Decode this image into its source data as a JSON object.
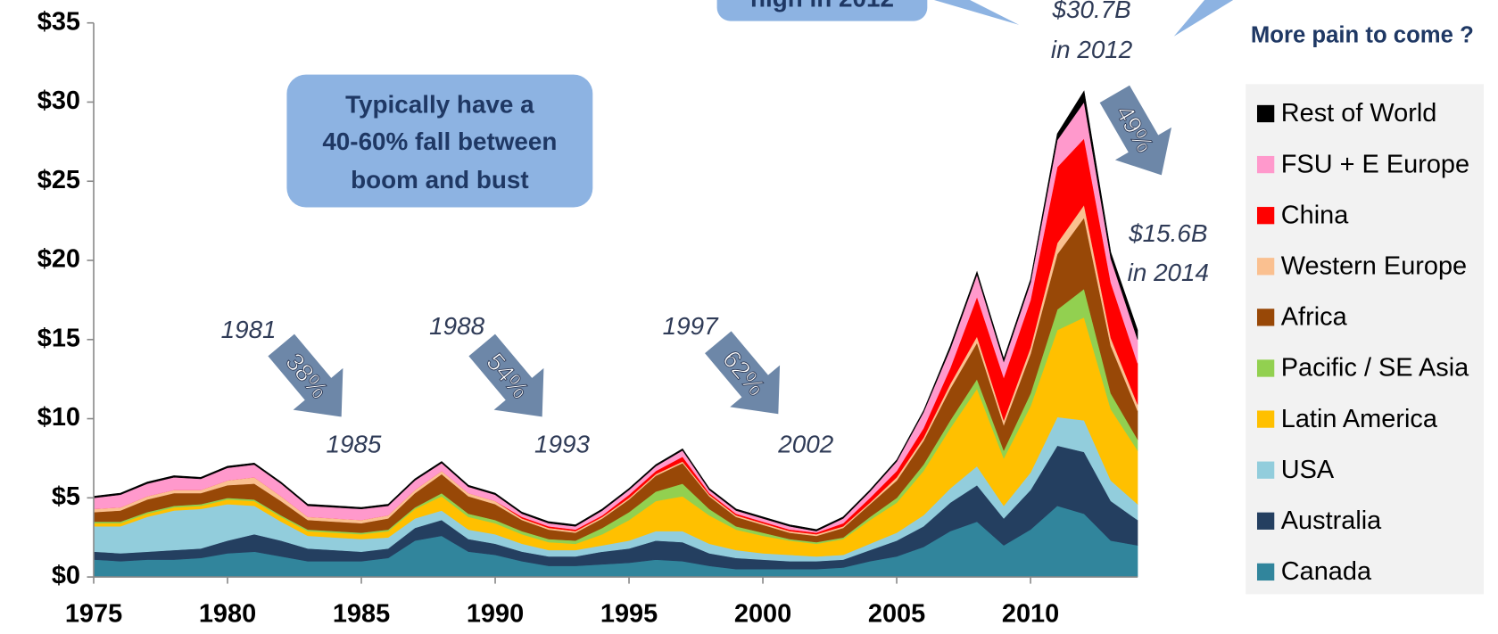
{
  "chart_data": {
    "type": "stacked_area",
    "x": [
      1975,
      1976,
      1977,
      1978,
      1979,
      1980,
      1981,
      1982,
      1983,
      1984,
      1985,
      1986,
      1987,
      1988,
      1989,
      1990,
      1991,
      1992,
      1993,
      1994,
      1995,
      1996,
      1997,
      1998,
      1999,
      2000,
      2001,
      2002,
      2003,
      2004,
      2005,
      2006,
      2007,
      2008,
      2009,
      2010,
      2011,
      2012,
      2013,
      2014
    ],
    "xlim": [
      1975,
      2014
    ],
    "xticks": [
      1975,
      1980,
      1985,
      1990,
      1995,
      2000,
      2005,
      2010
    ],
    "ylim": [
      0,
      35
    ],
    "yticks": [
      {
        "value": 0,
        "label": "$0"
      },
      {
        "value": 5,
        "label": "$5"
      },
      {
        "value": 10,
        "label": "$10"
      },
      {
        "value": 15,
        "label": "$15"
      },
      {
        "value": 20,
        "label": "$20"
      },
      {
        "value": 25,
        "label": "$25"
      },
      {
        "value": 30,
        "label": "$30"
      },
      {
        "value": 35,
        "label": "$35"
      }
    ],
    "legend": "right",
    "series": [
      {
        "name": "Canada",
        "color": "#31859c",
        "values": [
          1.1,
          1.0,
          1.1,
          1.1,
          1.2,
          1.5,
          1.6,
          1.3,
          1.0,
          1.0,
          1.0,
          1.2,
          2.3,
          2.6,
          1.6,
          1.4,
          1.0,
          0.7,
          0.7,
          0.8,
          0.9,
          1.1,
          1.0,
          0.7,
          0.5,
          0.5,
          0.5,
          0.5,
          0.6,
          1.0,
          1.3,
          1.9,
          2.9,
          3.5,
          2.0,
          3.0,
          4.5,
          4.0,
          2.3,
          2.0
        ]
      },
      {
        "name": "Australia",
        "color": "#243f60",
        "values": [
          0.5,
          0.5,
          0.5,
          0.6,
          0.6,
          0.8,
          1.1,
          1.0,
          0.8,
          0.7,
          0.6,
          0.6,
          0.8,
          1.0,
          0.8,
          0.7,
          0.6,
          0.6,
          0.6,
          0.8,
          0.9,
          1.2,
          1.2,
          0.8,
          0.7,
          0.6,
          0.5,
          0.5,
          0.5,
          0.7,
          1.0,
          1.3,
          1.8,
          2.3,
          1.7,
          2.5,
          3.8,
          3.9,
          2.5,
          1.6
        ]
      },
      {
        "name": "USA",
        "color": "#92cddc",
        "values": [
          1.6,
          1.7,
          2.2,
          2.5,
          2.5,
          2.3,
          1.8,
          1.2,
          0.8,
          0.8,
          0.8,
          0.7,
          0.6,
          0.6,
          0.6,
          0.6,
          0.5,
          0.4,
          0.4,
          0.4,
          0.5,
          0.6,
          0.7,
          0.6,
          0.5,
          0.4,
          0.4,
          0.3,
          0.3,
          0.4,
          0.5,
          0.7,
          0.9,
          1.2,
          0.8,
          1.1,
          1.8,
          2.0,
          1.3,
          1.0
        ]
      },
      {
        "name": "Latin America",
        "color": "#ffc000",
        "values": [
          0.2,
          0.2,
          0.2,
          0.2,
          0.2,
          0.3,
          0.3,
          0.3,
          0.3,
          0.3,
          0.3,
          0.4,
          0.6,
          0.9,
          0.8,
          0.7,
          0.6,
          0.5,
          0.4,
          0.7,
          1.3,
          1.9,
          2.2,
          1.8,
          1.3,
          1.1,
          0.9,
          0.8,
          1.0,
          1.5,
          1.9,
          2.8,
          3.8,
          4.9,
          3.0,
          4.2,
          5.5,
          6.5,
          4.5,
          3.4
        ]
      },
      {
        "name": "Pacific / SE Asia",
        "color": "#92d050",
        "values": [
          0.1,
          0.1,
          0.1,
          0.1,
          0.1,
          0.1,
          0.1,
          0.1,
          0.1,
          0.1,
          0.1,
          0.1,
          0.1,
          0.2,
          0.2,
          0.2,
          0.2,
          0.2,
          0.2,
          0.4,
          0.5,
          0.6,
          0.8,
          0.4,
          0.2,
          0.2,
          0.1,
          0.1,
          0.1,
          0.2,
          0.3,
          0.4,
          0.5,
          0.6,
          0.5,
          0.8,
          1.3,
          1.8,
          1.0,
          0.7
        ]
      },
      {
        "name": "Africa",
        "color": "#984807",
        "values": [
          0.6,
          0.7,
          0.8,
          0.8,
          0.7,
          0.8,
          1.0,
          0.9,
          0.6,
          0.6,
          0.6,
          0.7,
          0.9,
          1.2,
          1.1,
          1.0,
          0.7,
          0.6,
          0.5,
          0.6,
          0.8,
          1.0,
          1.3,
          0.8,
          0.6,
          0.5,
          0.4,
          0.4,
          0.6,
          0.8,
          1.1,
          1.5,
          2.0,
          2.3,
          1.6,
          2.5,
          3.5,
          4.5,
          3.0,
          1.8
        ]
      },
      {
        "name": "Western Europe",
        "color": "#fac090",
        "values": [
          0.2,
          0.2,
          0.2,
          0.2,
          0.2,
          0.3,
          0.4,
          0.3,
          0.2,
          0.2,
          0.2,
          0.2,
          0.2,
          0.2,
          0.2,
          0.2,
          0.1,
          0.1,
          0.1,
          0.1,
          0.1,
          0.1,
          0.1,
          0.1,
          0.1,
          0.1,
          0.1,
          0.1,
          0.1,
          0.1,
          0.2,
          0.2,
          0.3,
          0.4,
          0.3,
          0.4,
          0.7,
          0.8,
          0.5,
          0.4
        ]
      },
      {
        "name": "China",
        "color": "#ff0000",
        "values": [
          0,
          0,
          0,
          0,
          0,
          0,
          0,
          0,
          0,
          0,
          0,
          0,
          0,
          0,
          0,
          0,
          0.1,
          0.1,
          0.1,
          0.1,
          0.2,
          0.2,
          0.3,
          0.1,
          0.1,
          0.1,
          0.1,
          0.1,
          0.2,
          0.3,
          0.4,
          0.6,
          1.0,
          2.5,
          2.7,
          3.0,
          4.8,
          4.2,
          3.5,
          2.6
        ]
      },
      {
        "name": "FSU + E Europe",
        "color": "#ff99cc",
        "values": [
          0.7,
          0.8,
          0.8,
          0.8,
          0.7,
          0.8,
          0.8,
          0.8,
          0.7,
          0.7,
          0.7,
          0.6,
          0.6,
          0.5,
          0.4,
          0.4,
          0.2,
          0.2,
          0.2,
          0.3,
          0.3,
          0.3,
          0.4,
          0.2,
          0.2,
          0.2,
          0.2,
          0.1,
          0.3,
          0.4,
          0.6,
          1.0,
          1.2,
          1.4,
          1.0,
          1.1,
          1.7,
          2.3,
          1.5,
          1.5
        ]
      },
      {
        "name": "Rest of World",
        "color": "#000000",
        "values": [
          0.1,
          0.1,
          0.1,
          0.1,
          0.1,
          0.1,
          0.1,
          0.1,
          0.1,
          0.1,
          0.1,
          0.1,
          0.1,
          0.1,
          0.1,
          0.1,
          0.1,
          0.1,
          0.1,
          0.1,
          0.1,
          0.1,
          0.1,
          0.1,
          0.1,
          0.1,
          0.1,
          0.1,
          0.1,
          0.1,
          0.1,
          0.1,
          0.2,
          0.2,
          0.2,
          0.2,
          0.4,
          0.7,
          0.4,
          0.6
        ]
      }
    ],
    "annotations": [
      "high in 2012",
      "$30.7B",
      "in 2012",
      "More pain to come ?",
      "Typically have a",
      "40-60% fall between",
      "boom and bust",
      "1981",
      "38%",
      "1985",
      "1988",
      "54%",
      "1993",
      "1997",
      "62%",
      "2002",
      "49%",
      "$15.6B",
      "in 2014"
    ]
  }
}
